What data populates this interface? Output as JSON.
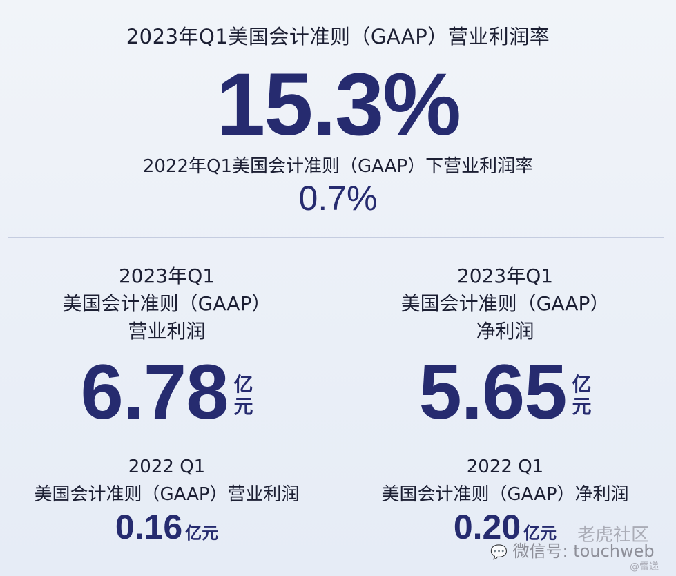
{
  "header": {
    "title": "2023年Q1美国会计准则（GAAP）营业利润率",
    "value": "15.3%",
    "prev_label": "2022年Q1美国会计准则（GAAP）下营业利润率",
    "prev_value": "0.7%"
  },
  "left": {
    "lines": [
      "2023年Q1",
      "美国会计准则（GAAP）",
      "营业利润"
    ],
    "value": "6.78",
    "unit": [
      "亿",
      "元"
    ],
    "prev_lines": [
      "2022 Q1",
      "美国会计准则（GAAP）营业利润"
    ],
    "prev_value": "0.16",
    "prev_unit": "亿元"
  },
  "right": {
    "lines": [
      "2023年Q1",
      "美国会计准则（GAAP）",
      "净利润"
    ],
    "value": "5.65",
    "unit": [
      "亿",
      "元"
    ],
    "prev_lines": [
      "2022 Q1",
      "美国会计准则（GAAP）净利润"
    ],
    "prev_value": "0.20",
    "prev_unit": "亿元"
  },
  "watermark": {
    "community": "老虎社区",
    "wechat": "微信号: touchweb",
    "author": "@雷递"
  },
  "colors": {
    "accent": "#262b6f",
    "text": "#1c1f33",
    "background": "#eef2f8"
  }
}
